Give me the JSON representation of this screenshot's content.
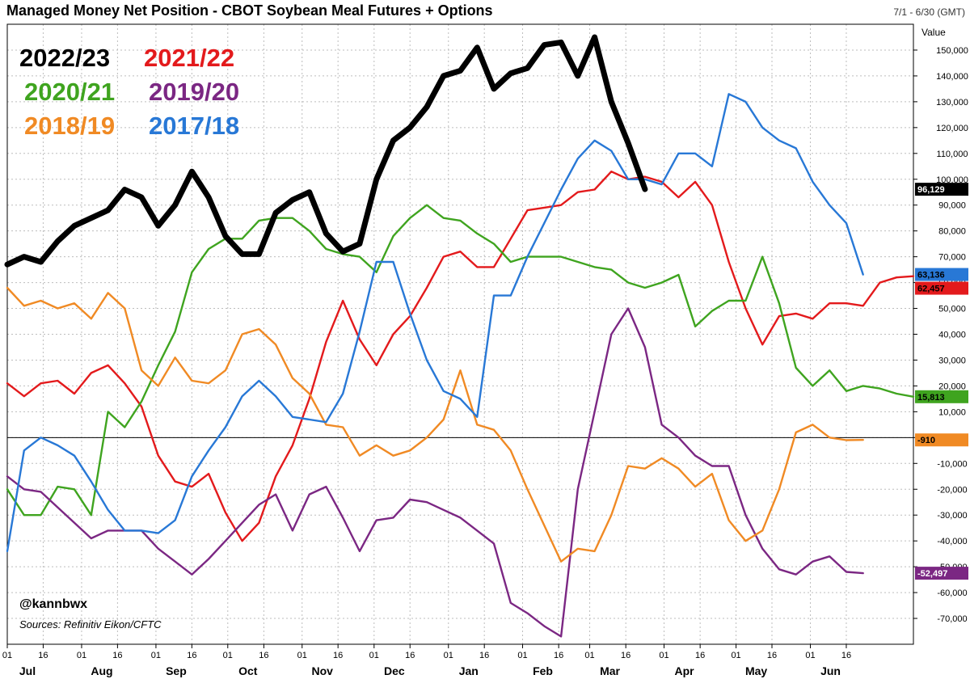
{
  "title": "Managed Money Net Position - CBOT Soybean Meal Futures + Options",
  "date_range": "7/1 - 6/30 (GMT)",
  "colors": {
    "2022/23": "#000000",
    "2021/22": "#e31a1c",
    "2020/21": "#3fa41f",
    "2019/20": "#7b2783",
    "2018/19": "#f08a24",
    "2017/18": "#2878d6"
  },
  "chart_data": {
    "type": "line",
    "title": "Managed Money Net Position - CBOT Soybean Meal Futures + Options",
    "ylabel": "Value",
    "ylim": [
      -80000,
      160000
    ],
    "xlim": [
      0,
      54
    ],
    "grid": true,
    "legend_position": "top-left",
    "y_ticks": [
      -70000,
      -60000,
      -50000,
      -40000,
      -30000,
      -20000,
      -10000,
      0,
      10000,
      20000,
      30000,
      40000,
      50000,
      60000,
      70000,
      80000,
      90000,
      100000,
      110000,
      120000,
      130000,
      140000,
      150000
    ],
    "y_tick_labels": [
      "-70,000",
      "-60,000",
      "-50,000",
      "-40,000",
      "-30,000",
      "-20,000",
      "-10,000",
      "0",
      "10,000",
      "20,000",
      "30,000",
      "40,000",
      "50,000",
      "60,000",
      "70,000",
      "80,000",
      "90,000",
      "100,000",
      "110,000",
      "120,000",
      "130,000",
      "140,000",
      "150,000"
    ],
    "x_ticks": [
      {
        "pos": 0,
        "day": "01",
        "month": "Jul"
      },
      {
        "pos": 2.14,
        "day": "16",
        "month": ""
      },
      {
        "pos": 4.43,
        "day": "01",
        "month": "Aug"
      },
      {
        "pos": 6.57,
        "day": "16",
        "month": ""
      },
      {
        "pos": 8.86,
        "day": "01",
        "month": "Sep"
      },
      {
        "pos": 11.0,
        "day": "16",
        "month": ""
      },
      {
        "pos": 13.14,
        "day": "01",
        "month": "Oct"
      },
      {
        "pos": 15.29,
        "day": "16",
        "month": ""
      },
      {
        "pos": 17.57,
        "day": "01",
        "month": "Nov"
      },
      {
        "pos": 19.71,
        "day": "16",
        "month": ""
      },
      {
        "pos": 21.86,
        "day": "01",
        "month": "Dec"
      },
      {
        "pos": 24.0,
        "day": "16",
        "month": ""
      },
      {
        "pos": 26.29,
        "day": "01",
        "month": "Jan"
      },
      {
        "pos": 28.43,
        "day": "16",
        "month": ""
      },
      {
        "pos": 30.71,
        "day": "01",
        "month": "Feb"
      },
      {
        "pos": 32.86,
        "day": "16",
        "month": ""
      },
      {
        "pos": 34.71,
        "day": "01",
        "month": "Mar"
      },
      {
        "pos": 36.86,
        "day": "16",
        "month": ""
      },
      {
        "pos": 39.14,
        "day": "01",
        "month": "Apr"
      },
      {
        "pos": 41.29,
        "day": "16",
        "month": ""
      },
      {
        "pos": 43.43,
        "day": "01",
        "month": "May"
      },
      {
        "pos": 45.57,
        "day": "16",
        "month": ""
      },
      {
        "pos": 47.86,
        "day": "01",
        "month": "Jun"
      },
      {
        "pos": 50.0,
        "day": "16",
        "month": ""
      }
    ],
    "reference_line": 0,
    "series": [
      {
        "name": "2021/22",
        "last_value_label": "62,457",
        "values": [
          21000,
          16000,
          21000,
          22000,
          17000,
          25000,
          28000,
          21000,
          12000,
          -7000,
          -17000,
          -19000,
          -14000,
          -29000,
          -40000,
          -33000,
          -15000,
          -3000,
          15000,
          37000,
          53000,
          38000,
          28000,
          40000,
          47000,
          58000,
          70000,
          72000,
          66000,
          66000,
          77000,
          88000,
          89000,
          90000,
          95000,
          96000,
          103000,
          100000,
          101000,
          99000,
          93000,
          99000,
          90000,
          68000,
          50000,
          36000,
          47000,
          48000,
          46000,
          52000,
          52000,
          51000,
          60000,
          62000,
          62457
        ]
      },
      {
        "name": "2020/21",
        "last_value_label": "15,813",
        "values": [
          -20000,
          -30000,
          -30000,
          -19000,
          -20000,
          -30000,
          10000,
          4000,
          14000,
          28000,
          41000,
          64000,
          73000,
          77000,
          77000,
          84000,
          85000,
          85000,
          80000,
          73000,
          71000,
          70000,
          64000,
          78000,
          85000,
          90000,
          85000,
          84000,
          79000,
          75000,
          68000,
          70000,
          70000,
          70000,
          68000,
          66000,
          65000,
          60000,
          58000,
          60000,
          63000,
          43000,
          49000,
          53000,
          53000,
          70000,
          52000,
          27000,
          20000,
          26000,
          18000,
          20000,
          19000,
          17000,
          15813
        ]
      },
      {
        "name": "2019/20",
        "last_value_label": "-52,497",
        "values": [
          -15000,
          -20000,
          -21000,
          -27000,
          -33000,
          -39000,
          -36000,
          -36000,
          -36000,
          -43000,
          -48000,
          -53000,
          -47000,
          -40000,
          -33000,
          -26000,
          -22000,
          -36000,
          -22000,
          -19000,
          -31000,
          -44000,
          -32000,
          -31000,
          -24000,
          -25000,
          -28000,
          -31000,
          -36000,
          -41000,
          -64000,
          -68000,
          -73000,
          -77000,
          -20000,
          10000,
          40000,
          50000,
          35000,
          5000,
          0,
          -7000,
          -11000,
          -11000,
          -30000,
          -43000,
          -51000,
          -53000,
          -48000,
          -46000,
          -52000,
          -52497
        ]
      },
      {
        "name": "2018/19",
        "last_value_label": "-910",
        "values": [
          58000,
          51000,
          53000,
          50000,
          52000,
          46000,
          56000,
          50000,
          26000,
          20000,
          31000,
          22000,
          21000,
          26000,
          40000,
          42000,
          36000,
          23000,
          17000,
          5000,
          4000,
          -7000,
          -3000,
          -7000,
          -5000,
          0,
          7000,
          26000,
          5000,
          3000,
          -5000,
          -20000,
          -34000,
          -48000,
          -43000,
          -44000,
          -30000,
          -11000,
          -12000,
          -8000,
          -12000,
          -19000,
          -14000,
          -32000,
          -40000,
          -36000,
          -20000,
          2000,
          5000,
          0,
          -1000,
          -910
        ]
      },
      {
        "name": "2017/18",
        "last_value_label": "63,136",
        "values": [
          -44000,
          -5000,
          0,
          -3000,
          -7000,
          -17000,
          -28000,
          -36000,
          -36000,
          -37000,
          -32000,
          -15000,
          -5000,
          4000,
          16000,
          22000,
          16000,
          8000,
          7000,
          6000,
          17000,
          41000,
          68000,
          68000,
          48000,
          30000,
          18000,
          15000,
          8000,
          55000,
          55000,
          70000,
          83000,
          96000,
          108000,
          115000,
          111000,
          100000,
          100000,
          98000,
          110000,
          110000,
          105000,
          133000,
          130000,
          120000,
          115000,
          112000,
          99000,
          90000,
          83000,
          63136
        ]
      },
      {
        "name": "2022/23",
        "last_value_label": "96,129",
        "values": [
          67000,
          70000,
          68000,
          76000,
          82000,
          85000,
          88000,
          96000,
          93000,
          82000,
          90000,
          103000,
          93000,
          78000,
          71000,
          71000,
          87000,
          92000,
          95000,
          79000,
          72000,
          75000,
          100000,
          115000,
          120000,
          128000,
          140000,
          142000,
          151000,
          135000,
          141000,
          143000,
          152000,
          153000,
          140000,
          155000,
          130000,
          114000,
          96129
        ]
      }
    ],
    "legend": [
      {
        "series": "2022/23",
        "label": "2022/23"
      },
      {
        "series": "2021/22",
        "label": "2021/22"
      },
      {
        "series": "2020/21",
        "label": "2020/21"
      },
      {
        "series": "2019/20",
        "label": "2019/20"
      },
      {
        "series": "2018/19",
        "label": "2018/19"
      },
      {
        "series": "2017/18",
        "label": "2017/18"
      }
    ],
    "annotations": [
      "@kannbwx",
      "Sources: Refinitiv Eikon/CFTC"
    ]
  }
}
